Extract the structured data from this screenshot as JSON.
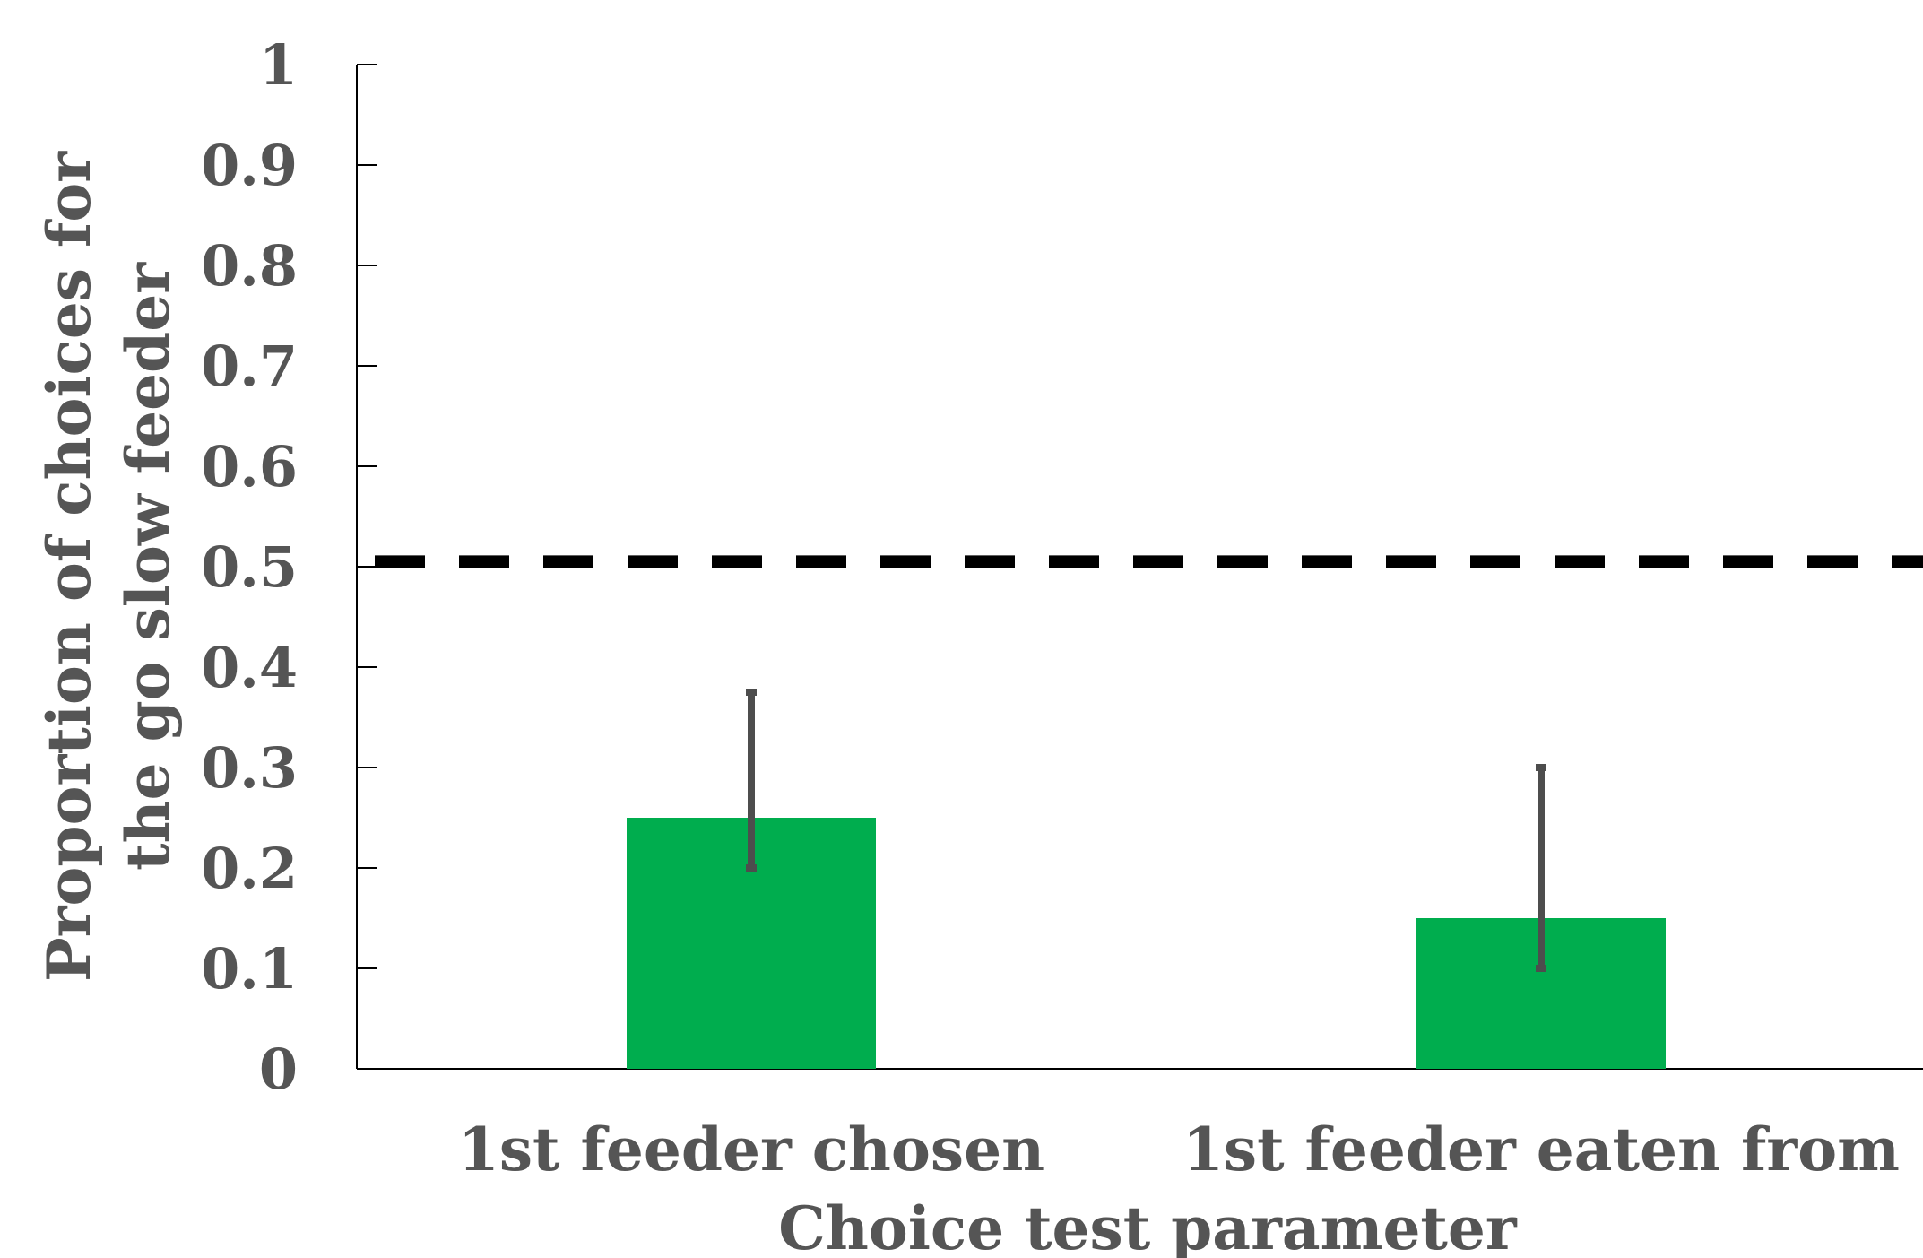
{
  "chart_data": {
    "type": "bar",
    "xlabel": "Choice test parameter",
    "ylabel_lines": [
      "Proportion of choices for",
      "the go slow feeder"
    ],
    "ylim": [
      0,
      1
    ],
    "yticks": [
      "0",
      "0.1",
      "0.2",
      "0.3",
      "0.4",
      "0.5",
      "0.6",
      "0.7",
      "0.8",
      "0.9",
      "1"
    ],
    "categories": [
      "1st feeder chosen",
      "1st feeder eaten from"
    ],
    "values": [
      0.25,
      0.15
    ],
    "error_low": [
      0.2,
      0.1
    ],
    "error_high": [
      0.375,
      0.3
    ],
    "reference_line": 0.505,
    "grid": false,
    "colors": {
      "bar": "#00ad4e",
      "error_bar": "#4d4d4d",
      "reference_line": "#000000",
      "axis": "#000000",
      "text": "#555555"
    }
  }
}
